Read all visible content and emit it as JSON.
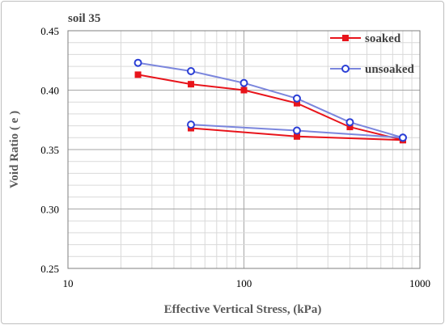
{
  "chart_data": {
    "type": "line",
    "annotation": "soil 35",
    "xlabel": "Effective Vertical Stress, (kPa)",
    "ylabel": "Void Ratio ( e )",
    "xscale": "log",
    "xlim": [
      10,
      1000
    ],
    "ylim": [
      0.25,
      0.45
    ],
    "x_ticks": [
      "10",
      "100",
      "1000"
    ],
    "y_ticks": [
      "0.25",
      "0.30",
      "0.35",
      "0.40",
      "0.45"
    ],
    "grid": true,
    "legend_position": "top-right",
    "series": [
      {
        "name": "soaked",
        "color": "#e8141b",
        "marker": "square",
        "segments": [
          [
            [
              25,
              0.413
            ],
            [
              50,
              0.405
            ],
            [
              100,
              0.4
            ],
            [
              200,
              0.389
            ],
            [
              400,
              0.369
            ],
            [
              800,
              0.358
            ]
          ],
          [
            [
              50,
              0.368
            ],
            [
              200,
              0.361
            ],
            [
              800,
              0.358
            ]
          ]
        ]
      },
      {
        "name": "unsoaked",
        "color": "#7b86dd",
        "marker": "circle-open",
        "segments": [
          [
            [
              25,
              0.423
            ],
            [
              50,
              0.416
            ],
            [
              100,
              0.406
            ],
            [
              200,
              0.393
            ],
            [
              400,
              0.373
            ],
            [
              800,
              0.36
            ]
          ],
          [
            [
              50,
              0.371
            ],
            [
              200,
              0.366
            ],
            [
              800,
              0.36
            ]
          ]
        ]
      }
    ]
  }
}
